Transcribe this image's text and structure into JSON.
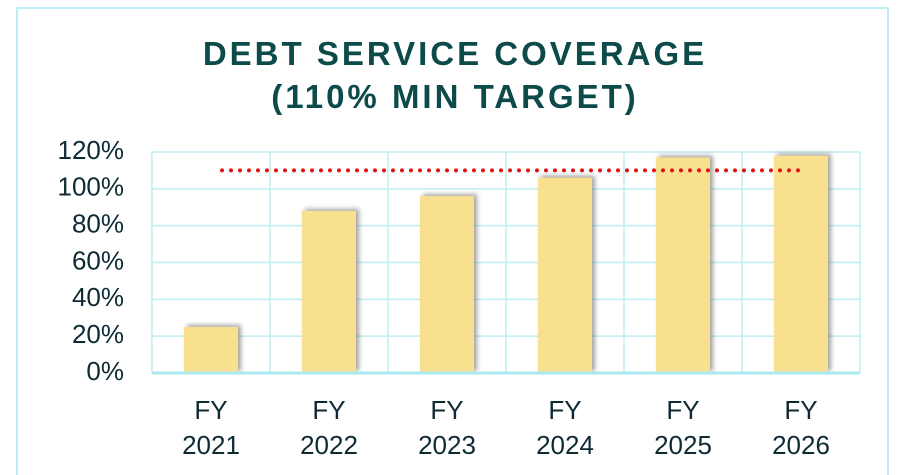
{
  "chart_data": {
    "type": "bar",
    "title": "DEBT SERVICE COVERAGE (110% MIN TARGET)",
    "categories": [
      "FY 2021",
      "FY 2022",
      "FY 2023",
      "FY 2024",
      "FY 2025",
      "FY 2026"
    ],
    "values": [
      25,
      88,
      96,
      106,
      117,
      118
    ],
    "color": "#f9e08e",
    "target": 110,
    "target_color": "#e01010",
    "ylim": [
      0,
      120
    ],
    "yticks": [
      {
        "value": 0,
        "label": "0%"
      },
      {
        "value": 20,
        "label": "20%"
      },
      {
        "value": 40,
        "label": "40%"
      },
      {
        "value": 60,
        "label": "60%"
      },
      {
        "value": 80,
        "label": "80%"
      },
      {
        "value": 100,
        "label": "100%"
      },
      {
        "value": 120,
        "label": "120%"
      }
    ],
    "grid": true
  }
}
